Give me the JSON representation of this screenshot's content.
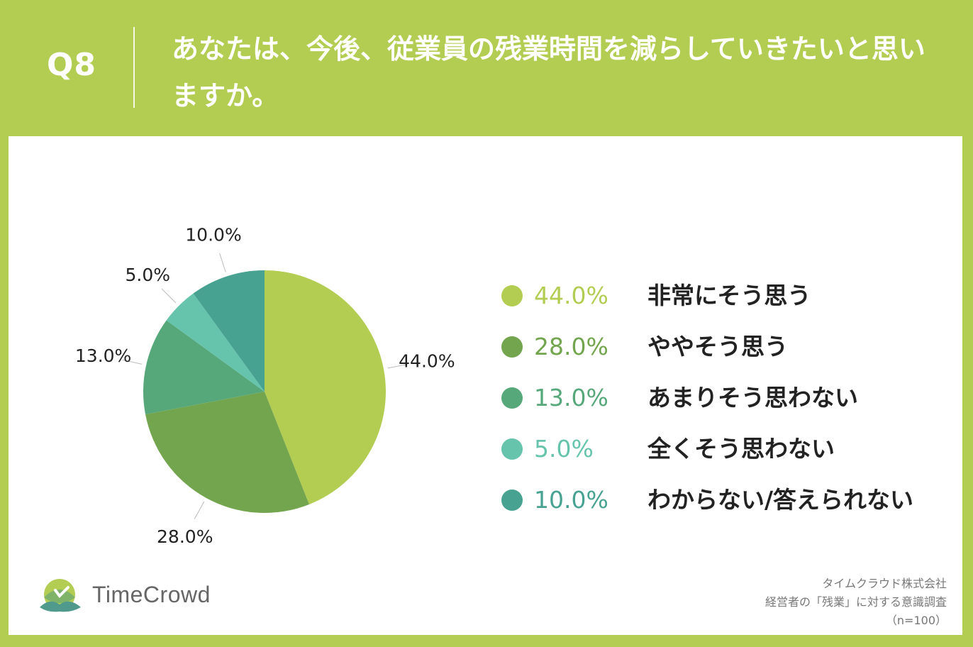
{
  "header": {
    "qnum": "Q8",
    "question": "あなたは、今後、従業員の残業時間を減らしていきたいと思いますか。"
  },
  "chart_data": {
    "type": "pie",
    "title": "",
    "categories": [
      "非常にそう思う",
      "ややそう思う",
      "あまりそう思わない",
      "全くそう思わない",
      "わからない/答えられない"
    ],
    "values": [
      44.0,
      28.0,
      13.0,
      5.0,
      10.0
    ],
    "labels": [
      "44.0%",
      "28.0%",
      "13.0%",
      "5.0%",
      "10.0%"
    ],
    "colors": [
      "#b3cd52",
      "#72a54d",
      "#56a87a",
      "#66c4ad",
      "#47a292"
    ],
    "legend_placement": "right"
  },
  "legend": {
    "items": [
      {
        "pct": "44.0%",
        "label": "非常にそう思う"
      },
      {
        "pct": "28.0%",
        "label": "ややそう思う"
      },
      {
        "pct": "13.0%",
        "label": "あまりそう思わない"
      },
      {
        "pct": "5.0%",
        "label": "全くそう思わない"
      },
      {
        "pct": "10.0%",
        "label": "わからない/答えられない"
      }
    ]
  },
  "logo": {
    "text": "TimeCrowd",
    "icon": "timecrowd-logo-icon"
  },
  "source": {
    "company": "タイムクラウド株式会社",
    "survey": "経営者の「残業」に対する意識調査",
    "sample": "（n=100）"
  }
}
